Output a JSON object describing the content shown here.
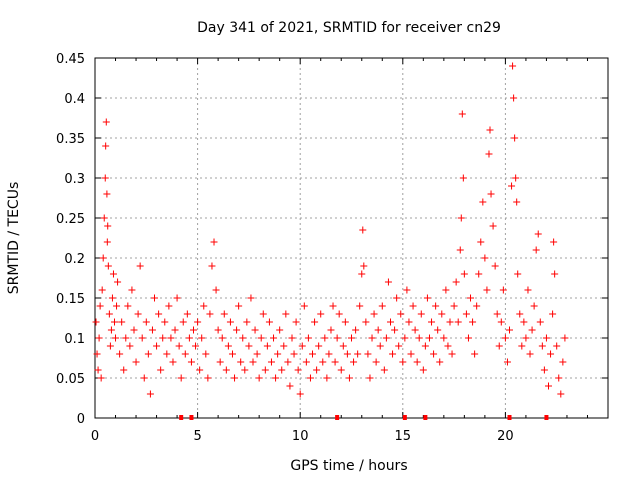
{
  "chart_data": {
    "type": "scatter",
    "title": "Day 341 of 2021, SRMTID for receiver cn29",
    "xlabel": "GPS time / hours",
    "ylabel": "SRMTID / TECUs",
    "xlim": [
      0,
      25
    ],
    "ylim": [
      0,
      0.45
    ],
    "x_ticks": [
      0,
      5,
      10,
      15,
      20
    ],
    "x_tick_labels": [
      "0",
      "5",
      "10",
      "15",
      "20"
    ],
    "y_ticks": [
      0,
      0.05,
      0.1,
      0.15,
      0.2,
      0.25,
      0.3,
      0.35,
      0.4,
      0.45
    ],
    "y_tick_labels": [
      "0",
      "0.05",
      "0.1",
      "0.15",
      "0.2",
      "0.25",
      "0.3",
      "0.35",
      "0.4",
      "0.45"
    ],
    "grid": true,
    "marker": "+",
    "color": "#ff0000",
    "series": [
      {
        "name": "SRMTID",
        "points": [
          [
            0.05,
            0.12
          ],
          [
            0.1,
            0.08
          ],
          [
            0.15,
            0.06
          ],
          [
            0.2,
            0.1
          ],
          [
            0.25,
            0.14
          ],
          [
            0.3,
            0.05
          ],
          [
            0.35,
            0.16
          ],
          [
            0.4,
            0.2
          ],
          [
            0.45,
            0.25
          ],
          [
            0.5,
            0.3
          ],
          [
            0.52,
            0.34
          ],
          [
            0.55,
            0.37
          ],
          [
            0.58,
            0.28
          ],
          [
            0.6,
            0.22
          ],
          [
            0.62,
            0.24
          ],
          [
            0.65,
            0.19
          ],
          [
            0.7,
            0.13
          ],
          [
            0.75,
            0.09
          ],
          [
            0.8,
            0.11
          ],
          [
            0.85,
            0.15
          ],
          [
            0.9,
            0.18
          ],
          [
            0.95,
            0.12
          ],
          [
            1.0,
            0.1
          ],
          [
            1.05,
            0.14
          ],
          [
            1.1,
            0.17
          ],
          [
            1.2,
            0.08
          ],
          [
            1.3,
            0.12
          ],
          [
            1.4,
            0.06
          ],
          [
            1.5,
            0.1
          ],
          [
            1.6,
            0.14
          ],
          [
            1.7,
            0.09
          ],
          [
            1.8,
            0.16
          ],
          [
            1.9,
            0.11
          ],
          [
            2.0,
            0.07
          ],
          [
            2.1,
            0.13
          ],
          [
            2.2,
            0.19
          ],
          [
            2.3,
            0.1
          ],
          [
            2.4,
            0.05
          ],
          [
            2.5,
            0.12
          ],
          [
            2.6,
            0.08
          ],
          [
            2.7,
            0.03
          ],
          [
            2.8,
            0.11
          ],
          [
            2.9,
            0.15
          ],
          [
            3.0,
            0.09
          ],
          [
            3.1,
            0.13
          ],
          [
            3.2,
            0.06
          ],
          [
            3.3,
            0.1
          ],
          [
            3.4,
            0.12
          ],
          [
            3.5,
            0.08
          ],
          [
            3.6,
            0.14
          ],
          [
            3.7,
            0.1
          ],
          [
            3.8,
            0.07
          ],
          [
            3.9,
            0.11
          ],
          [
            4.0,
            0.15
          ],
          [
            4.1,
            0.09
          ],
          [
            4.2,
            0.05
          ],
          [
            4.3,
            0.12
          ],
          [
            4.4,
            0.08
          ],
          [
            4.5,
            0.13
          ],
          [
            4.6,
            0.1
          ],
          [
            4.7,
            0.07
          ],
          [
            4.8,
            0.11
          ],
          [
            4.9,
            0.09
          ],
          [
            5.0,
            0.12
          ],
          [
            5.1,
            0.06
          ],
          [
            5.2,
            0.1
          ],
          [
            5.3,
            0.14
          ],
          [
            5.4,
            0.08
          ],
          [
            5.5,
            0.05
          ],
          [
            5.6,
            0.13
          ],
          [
            5.7,
            0.19
          ],
          [
            5.8,
            0.22
          ],
          [
            5.9,
            0.16
          ],
          [
            6.0,
            0.11
          ],
          [
            6.1,
            0.07
          ],
          [
            6.2,
            0.1
          ],
          [
            6.3,
            0.13
          ],
          [
            6.4,
            0.06
          ],
          [
            6.5,
            0.09
          ],
          [
            6.6,
            0.12
          ],
          [
            6.7,
            0.08
          ],
          [
            6.8,
            0.05
          ],
          [
            6.9,
            0.11
          ],
          [
            7.0,
            0.14
          ],
          [
            7.1,
            0.07
          ],
          [
            7.2,
            0.1
          ],
          [
            7.3,
            0.06
          ],
          [
            7.4,
            0.12
          ],
          [
            7.5,
            0.09
          ],
          [
            7.6,
            0.15
          ],
          [
            7.7,
            0.07
          ],
          [
            7.8,
            0.11
          ],
          [
            7.9,
            0.08
          ],
          [
            8.0,
            0.05
          ],
          [
            8.1,
            0.1
          ],
          [
            8.2,
            0.13
          ],
          [
            8.3,
            0.06
          ],
          [
            8.4,
            0.09
          ],
          [
            8.5,
            0.12
          ],
          [
            8.6,
            0.07
          ],
          [
            8.7,
            0.1
          ],
          [
            8.8,
            0.05
          ],
          [
            8.9,
            0.08
          ],
          [
            9.0,
            0.11
          ],
          [
            9.1,
            0.06
          ],
          [
            9.2,
            0.09
          ],
          [
            9.3,
            0.13
          ],
          [
            9.4,
            0.07
          ],
          [
            9.5,
            0.04
          ],
          [
            9.6,
            0.1
          ],
          [
            9.7,
            0.08
          ],
          [
            9.8,
            0.12
          ],
          [
            9.9,
            0.06
          ],
          [
            10.0,
            0.03
          ],
          [
            10.1,
            0.09
          ],
          [
            10.2,
            0.14
          ],
          [
            10.3,
            0.07
          ],
          [
            10.4,
            0.1
          ],
          [
            10.5,
            0.05
          ],
          [
            10.6,
            0.08
          ],
          [
            10.7,
            0.12
          ],
          [
            10.8,
            0.06
          ],
          [
            10.9,
            0.09
          ],
          [
            11.0,
            0.13
          ],
          [
            11.1,
            0.07
          ],
          [
            11.2,
            0.1
          ],
          [
            11.3,
            0.05
          ],
          [
            11.4,
            0.08
          ],
          [
            11.5,
            0.11
          ],
          [
            11.6,
            0.14
          ],
          [
            11.7,
            0.07
          ],
          [
            11.8,
            0.1
          ],
          [
            11.9,
            0.13
          ],
          [
            12.0,
            0.06
          ],
          [
            12.1,
            0.09
          ],
          [
            12.2,
            0.12
          ],
          [
            12.3,
            0.08
          ],
          [
            12.4,
            0.05
          ],
          [
            12.5,
            0.1
          ],
          [
            12.6,
            0.07
          ],
          [
            12.7,
            0.11
          ],
          [
            12.8,
            0.08
          ],
          [
            12.9,
            0.14
          ],
          [
            13.0,
            0.18
          ],
          [
            13.05,
            0.235
          ],
          [
            13.1,
            0.19
          ],
          [
            13.2,
            0.12
          ],
          [
            13.3,
            0.08
          ],
          [
            13.4,
            0.05
          ],
          [
            13.5,
            0.1
          ],
          [
            13.6,
            0.13
          ],
          [
            13.7,
            0.07
          ],
          [
            13.8,
            0.11
          ],
          [
            13.9,
            0.09
          ],
          [
            14.0,
            0.14
          ],
          [
            14.1,
            0.06
          ],
          [
            14.2,
            0.1
          ],
          [
            14.3,
            0.17
          ],
          [
            14.4,
            0.12
          ],
          [
            14.5,
            0.08
          ],
          [
            14.6,
            0.11
          ],
          [
            14.7,
            0.15
          ],
          [
            14.8,
            0.09
          ],
          [
            14.9,
            0.13
          ],
          [
            15.0,
            0.07
          ],
          [
            15.1,
            0.1
          ],
          [
            15.2,
            0.16
          ],
          [
            15.3,
            0.12
          ],
          [
            15.4,
            0.08
          ],
          [
            15.5,
            0.14
          ],
          [
            15.6,
            0.11
          ],
          [
            15.7,
            0.07
          ],
          [
            15.8,
            0.1
          ],
          [
            15.9,
            0.13
          ],
          [
            16.0,
            0.06
          ],
          [
            16.1,
            0.09
          ],
          [
            16.2,
            0.15
          ],
          [
            16.3,
            0.1
          ],
          [
            16.4,
            0.12
          ],
          [
            16.5,
            0.08
          ],
          [
            16.6,
            0.14
          ],
          [
            16.7,
            0.11
          ],
          [
            16.8,
            0.07
          ],
          [
            16.9,
            0.13
          ],
          [
            17.0,
            0.1
          ],
          [
            17.1,
            0.16
          ],
          [
            17.2,
            0.09
          ],
          [
            17.3,
            0.12
          ],
          [
            17.4,
            0.08
          ],
          [
            17.5,
            0.14
          ],
          [
            17.6,
            0.17
          ],
          [
            17.7,
            0.12
          ],
          [
            17.8,
            0.21
          ],
          [
            17.85,
            0.25
          ],
          [
            17.9,
            0.38
          ],
          [
            17.95,
            0.3
          ],
          [
            18.0,
            0.18
          ],
          [
            18.1,
            0.13
          ],
          [
            18.2,
            0.1
          ],
          [
            18.3,
            0.15
          ],
          [
            18.4,
            0.12
          ],
          [
            18.5,
            0.08
          ],
          [
            18.6,
            0.14
          ],
          [
            18.7,
            0.18
          ],
          [
            18.8,
            0.22
          ],
          [
            18.9,
            0.27
          ],
          [
            19.0,
            0.2
          ],
          [
            19.1,
            0.16
          ],
          [
            19.2,
            0.33
          ],
          [
            19.25,
            0.36
          ],
          [
            19.3,
            0.28
          ],
          [
            19.4,
            0.24
          ],
          [
            19.5,
            0.19
          ],
          [
            19.6,
            0.13
          ],
          [
            19.7,
            0.09
          ],
          [
            19.8,
            0.12
          ],
          [
            19.9,
            0.16
          ],
          [
            20.0,
            0.1
          ],
          [
            20.1,
            0.07
          ],
          [
            20.2,
            0.11
          ],
          [
            20.3,
            0.29
          ],
          [
            20.35,
            0.44
          ],
          [
            20.4,
            0.4
          ],
          [
            20.45,
            0.35
          ],
          [
            20.5,
            0.3
          ],
          [
            20.55,
            0.27
          ],
          [
            20.6,
            0.18
          ],
          [
            20.7,
            0.13
          ],
          [
            20.8,
            0.09
          ],
          [
            20.9,
            0.12
          ],
          [
            21.0,
            0.1
          ],
          [
            21.1,
            0.16
          ],
          [
            21.2,
            0.08
          ],
          [
            21.3,
            0.11
          ],
          [
            21.4,
            0.14
          ],
          [
            21.5,
            0.21
          ],
          [
            21.6,
            0.23
          ],
          [
            21.7,
            0.12
          ],
          [
            21.8,
            0.09
          ],
          [
            21.9,
            0.06
          ],
          [
            22.0,
            0.1
          ],
          [
            22.1,
            0.04
          ],
          [
            22.2,
            0.08
          ],
          [
            22.3,
            0.13
          ],
          [
            22.35,
            0.22
          ],
          [
            22.4,
            0.18
          ],
          [
            22.5,
            0.09
          ],
          [
            22.6,
            0.05
          ],
          [
            22.7,
            0.03
          ],
          [
            22.8,
            0.07
          ],
          [
            22.9,
            0.1
          ]
        ]
      }
    ],
    "x_axis_markers": [
      4.2,
      4.7,
      11.8,
      15.1,
      16.1,
      20.2,
      22.0
    ]
  }
}
